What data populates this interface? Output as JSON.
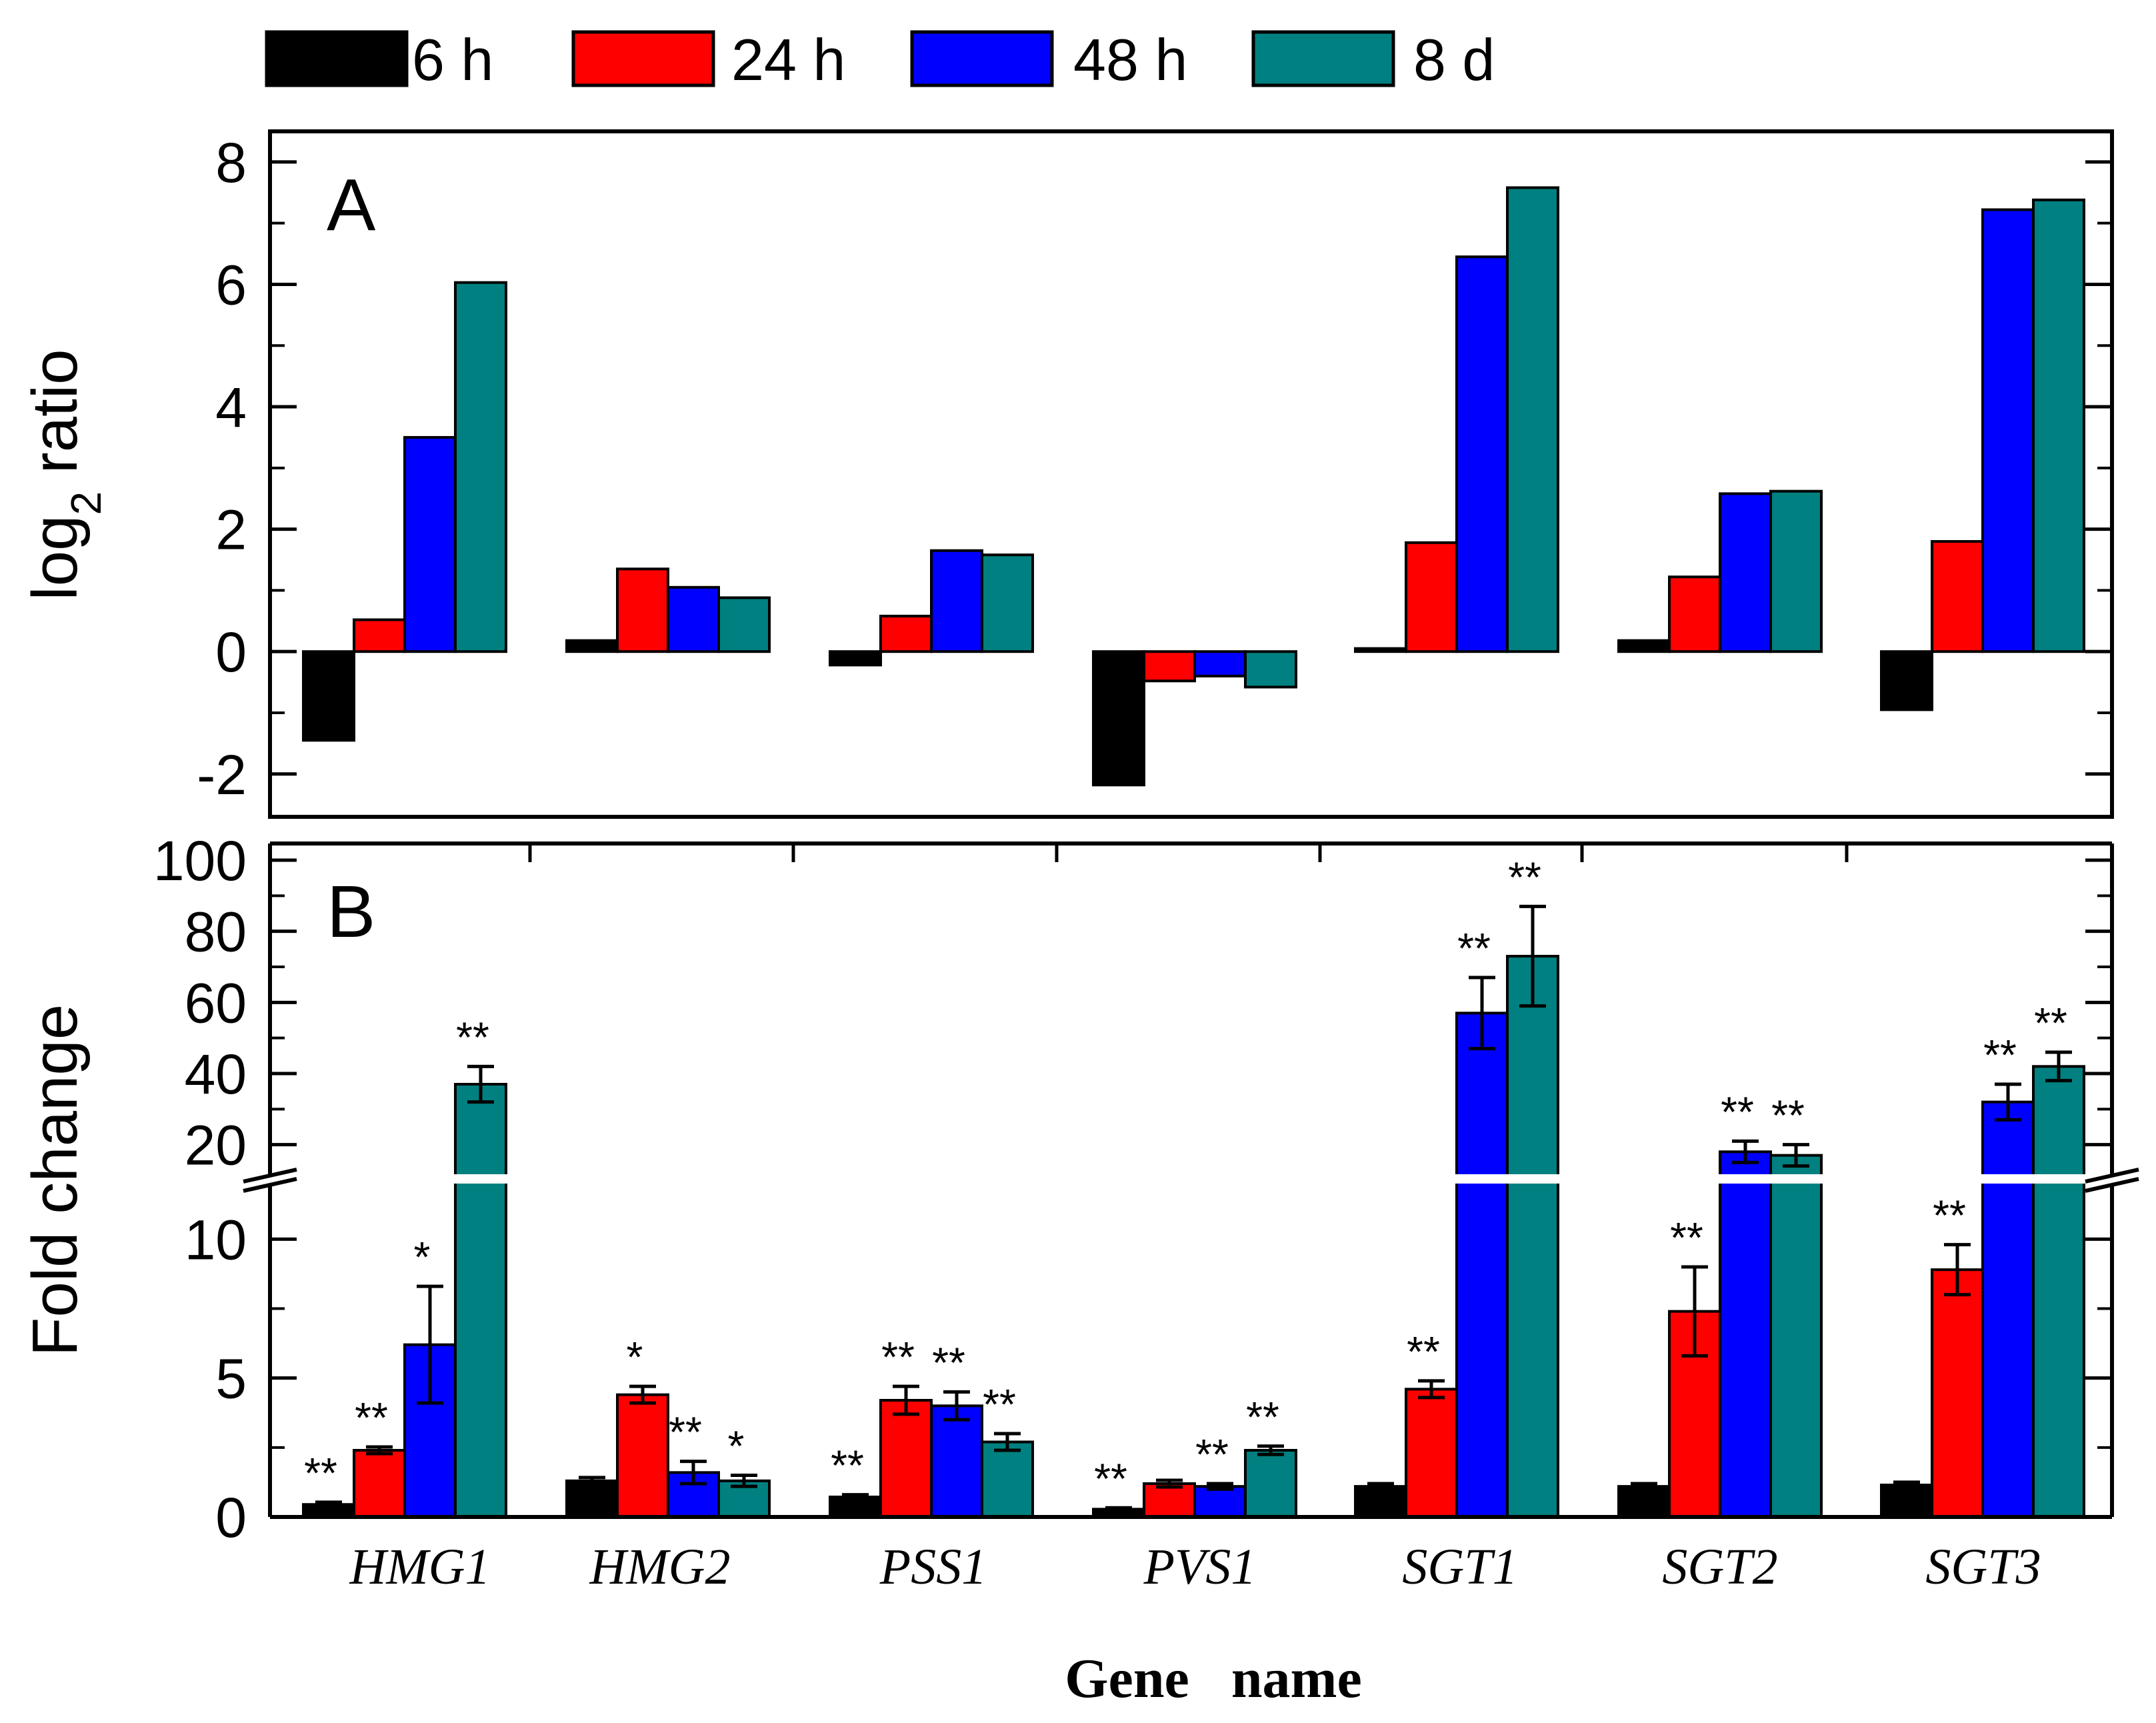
{
  "legend": [
    {
      "label": "6 h",
      "color": "#000000"
    },
    {
      "label": "24 h",
      "color": "#ff0000"
    },
    {
      "label": "48 h",
      "color": "#0000ff"
    },
    {
      "label": "8 d",
      "color": "#008080"
    }
  ],
  "xlabel": "Gene   name",
  "chart_data": [
    {
      "type": "bar",
      "panel_label": "A",
      "ylabel_main": "log",
      "ylabel_sub": "2",
      "ylabel_rest": " ratio",
      "ylim": [
        -2.7,
        8.5
      ],
      "yticks": [
        -2,
        0,
        2,
        4,
        6,
        8
      ],
      "categories": [
        "HMG1",
        "HMG2",
        "PSS1",
        "PVS1",
        "SGT1",
        "SGT2",
        "SGT3"
      ],
      "series": [
        {
          "name": "6 h",
          "values": [
            -1.45,
            0.18,
            -0.22,
            -2.18,
            0.05,
            0.18,
            -0.95
          ]
        },
        {
          "name": "24 h",
          "values": [
            0.52,
            1.35,
            0.58,
            -0.48,
            1.78,
            1.22,
            1.8
          ]
        },
        {
          "name": "48 h",
          "values": [
            3.5,
            1.05,
            1.65,
            -0.4,
            6.45,
            2.58,
            7.22
          ]
        },
        {
          "name": "8 d",
          "values": [
            6.03,
            0.88,
            1.58,
            -0.58,
            7.58,
            2.62,
            7.38
          ]
        }
      ]
    },
    {
      "type": "bar",
      "panel_label": "B",
      "ylabel": "Fold change",
      "axis_break": true,
      "lower_ylim": [
        0,
        12
      ],
      "upper_ylim": [
        20,
        100
      ],
      "lower_ticks": [
        0,
        5,
        10
      ],
      "upper_ticks": [
        20,
        40,
        60,
        80,
        100
      ],
      "categories": [
        "HMG1",
        "HMG2",
        "PSS1",
        "PVS1",
        "SGT1",
        "SGT2",
        "SGT3"
      ],
      "series": [
        {
          "name": "6 h",
          "values": [
            0.45,
            1.3,
            0.72,
            0.28,
            1.1,
            1.1,
            1.15
          ],
          "errors": [
            0.08,
            0.12,
            0.08,
            0.05,
            0.1,
            0.1,
            0.1
          ],
          "significance": [
            "**",
            "",
            "**",
            "**",
            "",
            "",
            ""
          ]
        },
        {
          "name": "24 h",
          "values": [
            2.4,
            4.4,
            4.2,
            1.2,
            4.6,
            7.4,
            8.9
          ],
          "errors": [
            0.12,
            0.3,
            0.5,
            0.12,
            0.3,
            1.6,
            0.9
          ],
          "significance": [
            "**",
            "*",
            "**",
            "",
            "**",
            "**",
            "**"
          ]
        },
        {
          "name": "48 h",
          "values": [
            6.2,
            1.6,
            4.0,
            1.1,
            57,
            18,
            32
          ],
          "errors": [
            2.1,
            0.4,
            0.5,
            0.1,
            10,
            3,
            5
          ],
          "significance": [
            "*",
            "**",
            "**",
            "**",
            "**",
            "**",
            "**"
          ]
        },
        {
          "name": "8 d",
          "values": [
            37,
            1.3,
            2.7,
            2.4,
            73,
            17,
            42
          ],
          "errors": [
            5,
            0.2,
            0.3,
            0.15,
            14,
            3,
            4
          ],
          "significance": [
            "**",
            "*",
            "**",
            "**",
            "**",
            "**",
            "**"
          ]
        }
      ]
    }
  ]
}
